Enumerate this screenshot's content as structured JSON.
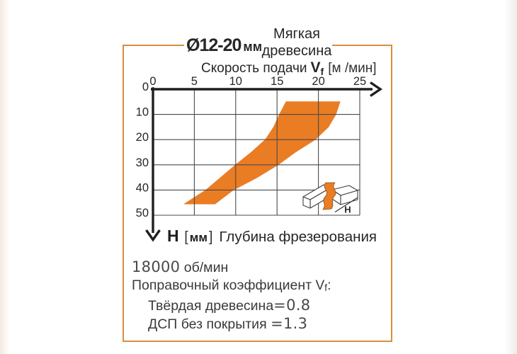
{
  "frame": {
    "diameter_value": "Ø12-20",
    "diameter_unit": "мм"
  },
  "material": {
    "line1": "Мягкая",
    "line2": "древесина"
  },
  "x_axis_title": {
    "prefix": "Скорость подачи",
    "symbol": "V",
    "symbol_sub": "f",
    "unit": "[м /мин]"
  },
  "depth_caption": {
    "symbol": "H",
    "bracket_open": "[",
    "unit": "мм",
    "bracket_close": "]",
    "text": "Глубина фрезерования"
  },
  "icon": {
    "depth_label": "H"
  },
  "notes": {
    "rpm_value": "18000",
    "rpm_unit": "об/мин",
    "coeff_prefix": "Поправочный коэффициент",
    "coeff_symbol": "V",
    "coeff_symbol_sub": "f",
    "coeff_colon": ":",
    "items": [
      {
        "label": "Твёрдая древесина",
        "value": "=0.8"
      },
      {
        "label": "ДСП без покрытия",
        "value": "=1.3"
      }
    ]
  },
  "colors": {
    "band_orange": "#EA7C24",
    "frame_border": "#D78F3E",
    "grid": "#4a4a4a",
    "ink": "#1f1f1f"
  },
  "chart_data": {
    "type": "area",
    "title": "Скорость подачи Vf [м/мин] — Мягкая древесина, Ø12-20 мм",
    "xlabel": "Скорость подачи Vf [м /мин]",
    "ylabel": "H [мм] Глубина фрезерования",
    "x_ticks": [
      0,
      5,
      10,
      15,
      20,
      25
    ],
    "y_ticks": [
      0,
      10,
      20,
      30,
      40,
      50
    ],
    "xlim": [
      0,
      25
    ],
    "ylim": [
      0,
      50
    ],
    "y_axis_direction": "down",
    "grid": true,
    "band": {
      "description": "допустимая рабочая область: скорость подачи в зависимости от глубины фрезерования",
      "left_boundary": [
        [
          16.1,
          5
        ],
        [
          15.3,
          10
        ],
        [
          14.6,
          15
        ],
        [
          13.6,
          20
        ],
        [
          11.9,
          25
        ],
        [
          10,
          30
        ],
        [
          8.2,
          35
        ],
        [
          6.4,
          40
        ],
        [
          3.8,
          45.5
        ]
      ],
      "right_boundary": [
        [
          22.6,
          5
        ],
        [
          22.1,
          10
        ],
        [
          21.2,
          15
        ],
        [
          19.6,
          20
        ],
        [
          17.2,
          25
        ],
        [
          15.1,
          30
        ],
        [
          12.6,
          35
        ],
        [
          9.7,
          40
        ],
        [
          7.5,
          45.5
        ]
      ]
    }
  }
}
